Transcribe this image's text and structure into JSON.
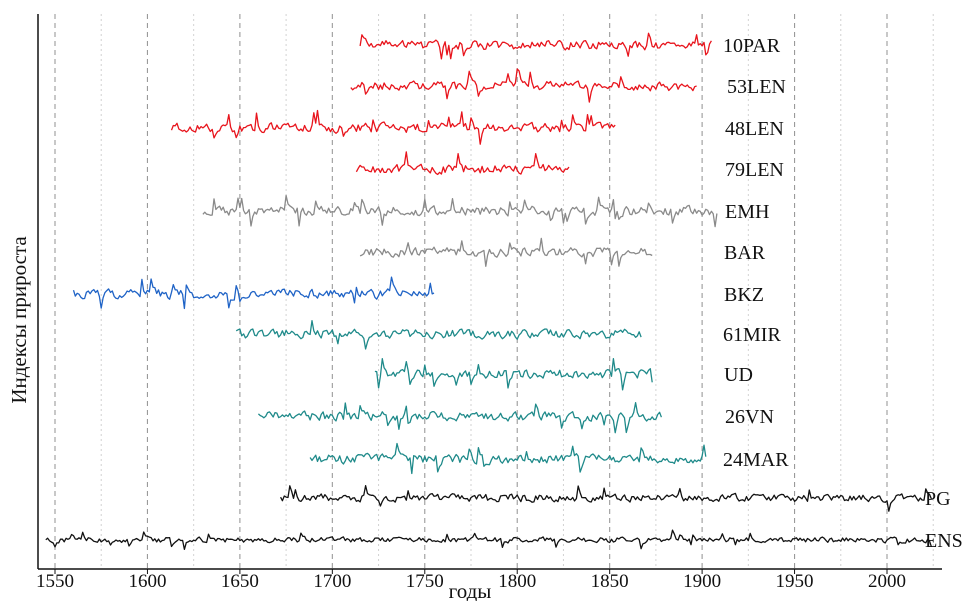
{
  "chart_data": {
    "type": "line",
    "title": "",
    "xlabel": "годы",
    "ylabel": "Индексы прироста",
    "xlim": [
      1545,
      2030
    ],
    "x_ticks": [
      1550,
      1600,
      1650,
      1700,
      1750,
      1800,
      1850,
      1900,
      1950,
      2000
    ],
    "x_tick_labels": [
      "1550",
      "1600",
      "1650",
      "1700",
      "1750",
      "1800",
      "1850",
      "1900",
      "1950",
      "2000"
    ],
    "grid": {
      "x_major": true,
      "x_minor": true,
      "y": false
    },
    "series": [
      {
        "name": "10PAR",
        "color": "#e8141c",
        "start": 1715,
        "end": 1905
      },
      {
        "name": "53LEN",
        "color": "#e8141c",
        "start": 1710,
        "end": 1897
      },
      {
        "name": "48LEN",
        "color": "#e8141c",
        "start": 1613,
        "end": 1853
      },
      {
        "name": "79LEN",
        "color": "#e8141c",
        "start": 1713,
        "end": 1828
      },
      {
        "name": "EMH",
        "color": "#8a8a8a",
        "start": 1630,
        "end": 1908
      },
      {
        "name": "BAR",
        "color": "#8a8a8a",
        "start": 1715,
        "end": 1873
      },
      {
        "name": "BKZ",
        "color": "#1f63c6",
        "start": 1560,
        "end": 1755
      },
      {
        "name": "61MIR",
        "color": "#1f8a8a",
        "start": 1648,
        "end": 1867
      },
      {
        "name": "UD",
        "color": "#1f8a8a",
        "start": 1723,
        "end": 1873
      },
      {
        "name": "26VN",
        "color": "#1f8a8a",
        "start": 1660,
        "end": 1878
      },
      {
        "name": "24MAR",
        "color": "#1f8a8a",
        "start": 1688,
        "end": 1902
      },
      {
        "name": "PG",
        "color": "#111111",
        "start": 1672,
        "end": 2024
      },
      {
        "name": "ENS",
        "color": "#111111",
        "start": 1545,
        "end": 2024
      }
    ]
  }
}
